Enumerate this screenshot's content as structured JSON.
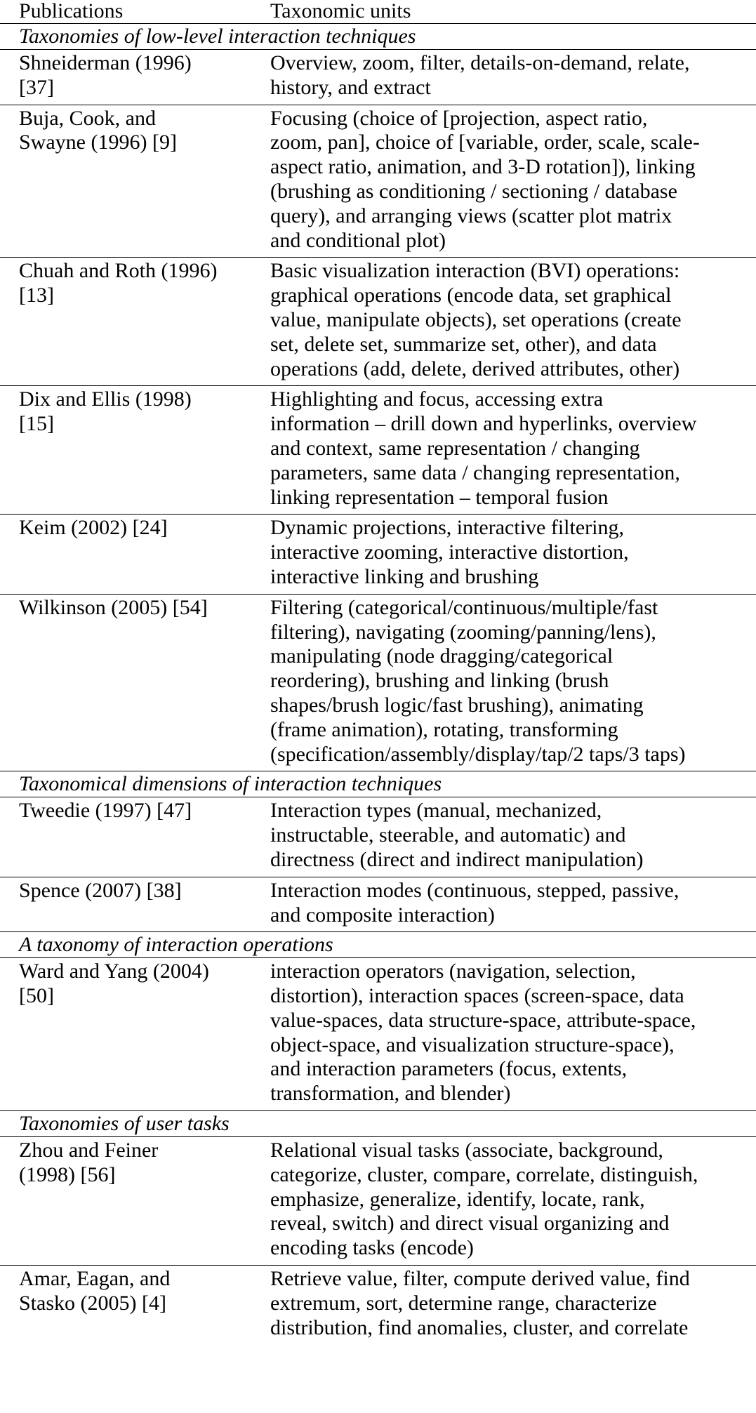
{
  "table": {
    "headers": {
      "publications": "Publications",
      "taxonomic_units": "Taxonomic units"
    },
    "sections": [
      {
        "title": "Taxonomies of low-level interaction techniques",
        "rows": [
          {
            "publication": [
              "Shneiderman (1996)",
              "[37]"
            ],
            "units": [
              "Overview, zoom, filter, details-on-demand, relate,",
              "history, and extract"
            ]
          },
          {
            "publication": [
              "Buja, Cook, and",
              "Swayne (1996) [9]"
            ],
            "units": [
              "Focusing (choice of [projection, aspect ratio,",
              "zoom, pan], choice of [variable, order, scale, scale-",
              "aspect ratio, animation, and 3-D rotation]), linking",
              "(brushing as conditioning / sectioning / database",
              "query), and arranging views (scatter plot matrix",
              "and conditional plot)"
            ]
          },
          {
            "publication": [
              "Chuah and Roth (1996)",
              "[13]"
            ],
            "units": [
              "Basic visualization interaction (BVI) operations:",
              "graphical operations (encode data, set graphical",
              "value, manipulate objects), set operations (create",
              "set, delete set, summarize set, other), and data",
              "operations (add, delete, derived attributes, other)"
            ]
          },
          {
            "publication": [
              "Dix and Ellis (1998)",
              "[15]"
            ],
            "units": [
              "Highlighting and focus, accessing extra",
              "information – drill down and hyperlinks, overview",
              "and context, same representation / changing",
              "parameters, same data / changing representation,",
              "linking representation – temporal fusion"
            ]
          },
          {
            "publication": [
              "Keim (2002) [24]"
            ],
            "units": [
              "Dynamic projections, interactive filtering,",
              "interactive zooming, interactive distortion,",
              "interactive linking and brushing"
            ]
          },
          {
            "publication": [
              "Wilkinson (2005) [54]"
            ],
            "units": [
              "Filtering (categorical/continuous/multiple/fast",
              "filtering), navigating (zooming/panning/lens),",
              "manipulating (node dragging/categorical",
              "reordering), brushing and linking (brush",
              "shapes/brush logic/fast brushing), animating",
              "(frame animation), rotating, transforming",
              "(specification/assembly/display/tap/2 taps/3 taps)"
            ]
          }
        ]
      },
      {
        "title": "Taxonomical dimensions of interaction techniques",
        "rows": [
          {
            "publication": [
              "Tweedie (1997) [47]"
            ],
            "units": [
              "Interaction types (manual, mechanized,",
              "instructable, steerable, and automatic) and",
              "directness (direct and indirect manipulation)"
            ]
          },
          {
            "publication": [
              "Spence (2007) [38]"
            ],
            "units": [
              "Interaction modes (continuous, stepped, passive,",
              "and composite interaction)"
            ]
          }
        ]
      },
      {
        "title": "A taxonomy of interaction operations",
        "rows": [
          {
            "publication": [
              "Ward and Yang (2004)",
              "[50]"
            ],
            "units": [
              "interaction operators (navigation, selection,",
              "distortion), interaction spaces (screen-space, data",
              "value-spaces, data structure-space, attribute-space,",
              "object-space, and visualization structure-space),",
              "and interaction parameters (focus, extents,",
              "transformation, and blender)"
            ]
          }
        ]
      },
      {
        "title": "Taxonomies of user tasks",
        "rows": [
          {
            "publication": [
              "Zhou and Feiner",
              "(1998) [56]"
            ],
            "units": [
              "Relational visual tasks (associate, background,",
              "categorize, cluster, compare, correlate, distinguish,",
              "emphasize, generalize, identify, locate, rank,",
              "reveal, switch) and direct visual organizing and",
              "encoding tasks (encode)"
            ]
          },
          {
            "publication": [
              "Amar, Eagan, and",
              "Stasko (2005) [4]"
            ],
            "units": [
              "Retrieve value, filter, compute derived value, find",
              "extremum, sort, determine range, characterize",
              "distribution, find anomalies, cluster, and correlate"
            ]
          }
        ]
      }
    ]
  }
}
